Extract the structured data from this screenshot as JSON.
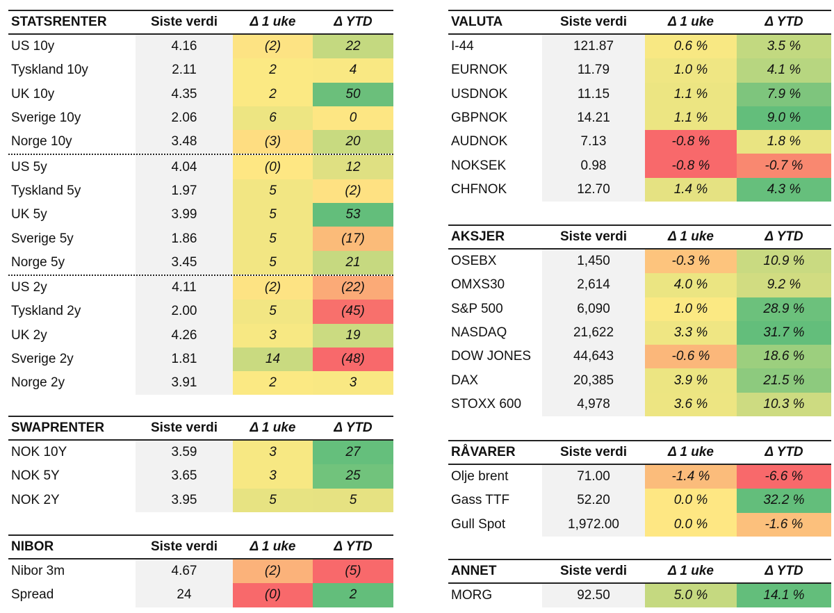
{
  "columns": {
    "value": "Siste verdi",
    "week": "Δ 1 uke",
    "ytd": "Δ YTD"
  },
  "tables": {
    "stats": {
      "title": "STATSRENTER",
      "side": "L",
      "dotted_after": [
        4,
        9
      ],
      "rows": [
        {
          "name": "US 10y",
          "value": "4.16",
          "week": "(2)",
          "week_color": "#fde383",
          "ytd": "22",
          "ytd_color": "#c4d980"
        },
        {
          "name": "Tyskland 10y",
          "value": "2.11",
          "week": "2",
          "week_color": "#fbe983",
          "ytd": "4",
          "ytd_color": "#f9e883"
        },
        {
          "name": "UK 10y",
          "value": "4.35",
          "week": "2",
          "week_color": "#fbe983",
          "ytd": "50",
          "ytd_color": "#6bbf7b"
        },
        {
          "name": "Sverige 10y",
          "value": "2.06",
          "week": "6",
          "week_color": "#ede582",
          "ytd": "0",
          "ytd_color": "#fde683"
        },
        {
          "name": "Norge 10y",
          "value": "3.48",
          "week": "(3)",
          "week_color": "#fedd81",
          "ytd": "20",
          "ytd_color": "#c8da80"
        },
        {
          "name": "US 5y",
          "value": "4.04",
          "week": "(0)",
          "week_color": "#fee783",
          "ytd": "12",
          "ytd_color": "#dfe082"
        },
        {
          "name": "Tyskland 5y",
          "value": "1.97",
          "week": "5",
          "week_color": "#f2e683",
          "ytd": "(2)",
          "ytd_color": "#fee182"
        },
        {
          "name": "UK 5y",
          "value": "3.99",
          "week": "5",
          "week_color": "#f2e683",
          "ytd": "53",
          "ytd_color": "#63be7b"
        },
        {
          "name": "Sverige 5y",
          "value": "1.86",
          "week": "5",
          "week_color": "#f2e683",
          "ytd": "(17)",
          "ytd_color": "#fbbb79"
        },
        {
          "name": "Norge 5y",
          "value": "3.45",
          "week": "5",
          "week_color": "#f2e683",
          "ytd": "21",
          "ytd_color": "#c6d980"
        },
        {
          "name": "US 2y",
          "value": "4.11",
          "week": "(2)",
          "week_color": "#fde383",
          "ytd": "(22)",
          "ytd_color": "#fbaa77"
        },
        {
          "name": "Tyskland 2y",
          "value": "2.00",
          "week": "5",
          "week_color": "#f2e683",
          "ytd": "(45)",
          "ytd_color": "#f8706c"
        },
        {
          "name": "UK 2y",
          "value": "4.26",
          "week": "3",
          "week_color": "#f7e883",
          "ytd": "19",
          "ytd_color": "#cbdb81"
        },
        {
          "name": "Sverige 2y",
          "value": "1.81",
          "week": "14",
          "week_color": "#c9da80",
          "ytd": "(48)",
          "ytd_color": "#f8696b"
        },
        {
          "name": "Norge 2y",
          "value": "3.91",
          "week": "2",
          "week_color": "#fbe983",
          "ytd": "3",
          "ytd_color": "#f9e883"
        }
      ]
    },
    "swap": {
      "title": "SWAPRENTER",
      "side": "L",
      "rows": [
        {
          "name": "NOK 10Y",
          "value": "3.59",
          "week": "3",
          "week_color": "#f7e883",
          "ytd": "27",
          "ytd_color": "#65bf7c"
        },
        {
          "name": "NOK 5Y",
          "value": "3.65",
          "week": "3",
          "week_color": "#f7e883",
          "ytd": "25",
          "ytd_color": "#71c37c"
        },
        {
          "name": "NOK 2Y",
          "value": "3.95",
          "week": "5",
          "week_color": "#e7e382",
          "ytd": "5",
          "ytd_color": "#e6e282"
        }
      ]
    },
    "nibor": {
      "title": "NIBOR",
      "side": "L",
      "rows": [
        {
          "name": "Nibor 3m",
          "value": "4.67",
          "week": "(2)",
          "week_color": "#fbb27a",
          "ytd": "(5)",
          "ytd_color": "#f8696b"
        },
        {
          "name": "Spread",
          "value": "24",
          "week": "(0)",
          "week_color": "#f8696b",
          "ytd": "2",
          "ytd_color": "#63be7b"
        }
      ]
    },
    "valuta": {
      "title": "VALUTA",
      "side": "R",
      "rows": [
        {
          "name": "I-44",
          "value": "121.87",
          "week": "0.6 %",
          "week_color": "#f8e883",
          "ytd": "3.5 %",
          "ytd_color": "#c2d980"
        },
        {
          "name": "EURNOK",
          "value": "11.79",
          "week": "1.0 %",
          "week_color": "#efe683",
          "ytd": "4.1 %",
          "ytd_color": "#b7d680"
        },
        {
          "name": "USDNOK",
          "value": "11.15",
          "week": "1.1 %",
          "week_color": "#ece582",
          "ytd": "7.9 %",
          "ytd_color": "#7ec57d"
        },
        {
          "name": "GBPNOK",
          "value": "14.21",
          "week": "1.1 %",
          "week_color": "#ece582",
          "ytd": "9.0 %",
          "ytd_color": "#63be7b"
        },
        {
          "name": "AUDNOK",
          "value": "7.13",
          "week": "-0.8 %",
          "week_color": "#f8696b",
          "ytd": "1.8 %",
          "ytd_color": "#e9e482"
        },
        {
          "name": "NOKSEK",
          "value": "0.98",
          "week": "-0.8 %",
          "week_color": "#f8696b",
          "ytd": "-0.7 %",
          "ytd_color": "#f98870"
        },
        {
          "name": "CHFNOK",
          "value": "12.70",
          "week": "1.4 %",
          "week_color": "#e5e282",
          "ytd": "4.3 %",
          "ytd_color": "#66bf7c"
        }
      ]
    },
    "aksjer": {
      "title": "AKSJER",
      "side": "R",
      "rows": [
        {
          "name": "OSEBX",
          "value": "1,450",
          "week": "-0.3 %",
          "week_color": "#fdc47d",
          "ytd": "10.9 %",
          "ytd_color": "#c9da81"
        },
        {
          "name": "OMXS30",
          "value": "2,614",
          "week": "4.0 %",
          "week_color": "#ebe582",
          "ytd": "9.2 %",
          "ytd_color": "#d1dc81"
        },
        {
          "name": "S&P 500",
          "value": "6,090",
          "week": "1.0 %",
          "week_color": "#fbe983",
          "ytd": "28.9 %",
          "ytd_color": "#6cc17c"
        },
        {
          "name": "NASDAQ",
          "value": "21,622",
          "week": "3.3 %",
          "week_color": "#efe683",
          "ytd": "31.7 %",
          "ytd_color": "#63be7b"
        },
        {
          "name": "DOW JONES",
          "value": "44,643",
          "week": "-0.6 %",
          "week_color": "#fbb77a",
          "ytd": "18.6 %",
          "ytd_color": "#9ccf7e"
        },
        {
          "name": "DAX",
          "value": "20,385",
          "week": "3.9 %",
          "week_color": "#ece582",
          "ytd": "21.5 %",
          "ytd_color": "#8dca7e"
        },
        {
          "name": "STOXX 600",
          "value": "4,978",
          "week": "3.6 %",
          "week_color": "#ede582",
          "ytd": "10.3 %",
          "ytd_color": "#cddb81"
        }
      ]
    },
    "ravarer": {
      "title": "RÅVARER",
      "side": "R",
      "rows": [
        {
          "name": "Olje brent",
          "value": "71.00",
          "week": "-1.4 %",
          "week_color": "#fbbc7b",
          "ytd": "-6.6 %",
          "ytd_color": "#f8696b"
        },
        {
          "name": "Gass TTF",
          "value": "52.20",
          "week": "0.0 %",
          "week_color": "#fee783",
          "ytd": "32.2 %",
          "ytd_color": "#63be7b"
        },
        {
          "name": "Gull Spot",
          "value": "1,972.00",
          "week": "0.0 %",
          "week_color": "#fee783",
          "ytd": "-1.6 %",
          "ytd_color": "#fcc07c"
        }
      ]
    },
    "annet": {
      "title": "ANNET",
      "side": "R",
      "rows": [
        {
          "name": "MORG",
          "value": "92.50",
          "week": "5.0 %",
          "week_color": "#c5d980",
          "ytd": "14.1 %",
          "ytd_color": "#63be7b"
        }
      ]
    }
  }
}
